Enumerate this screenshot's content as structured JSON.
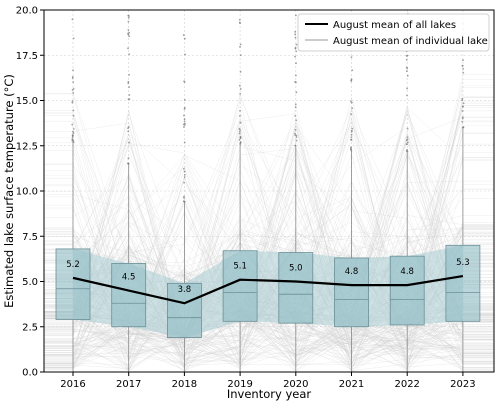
{
  "chart_data": {
    "type": "box",
    "xlabel": "Inventory year",
    "ylabel": "Estimated lake surface temperature (°C)",
    "ylim": [
      0,
      20
    ],
    "yticks": [
      0.0,
      2.5,
      5.0,
      7.5,
      10.0,
      12.5,
      15.0,
      17.5,
      20.0
    ],
    "ytick_labels": [
      "0.0",
      "2.5",
      "5.0",
      "7.5",
      "10.0",
      "12.5",
      "15.0",
      "17.5",
      "20.0"
    ],
    "categories": [
      "2016",
      "2017",
      "2018",
      "2019",
      "2020",
      "2021",
      "2022",
      "2023"
    ],
    "grid": true,
    "legend_position": "top-right",
    "legend": [
      {
        "label": "August mean of all lakes",
        "color": "#000000"
      },
      {
        "label": "August mean of individual lake",
        "color": "#bbbbbb"
      }
    ],
    "mean_line": [
      5.2,
      4.5,
      3.8,
      5.1,
      5.0,
      4.8,
      4.8,
      5.3
    ],
    "mean_labels": [
      "5.2",
      "4.5",
      "3.8",
      "5.1",
      "5.0",
      "4.8",
      "4.8",
      "5.3"
    ],
    "boxes": [
      {
        "q1": 2.9,
        "median": 4.6,
        "q3": 6.8,
        "whisker_low": 0.0,
        "whisker_high": 12.7
      },
      {
        "q1": 2.5,
        "median": 3.8,
        "q3": 6.0,
        "whisker_low": 0.0,
        "whisker_high": 11.5
      },
      {
        "q1": 1.9,
        "median": 3.0,
        "q3": 4.9,
        "whisker_low": 0.0,
        "whisker_high": 9.4
      },
      {
        "q1": 2.8,
        "median": 4.4,
        "q3": 6.7,
        "whisker_low": 0.0,
        "whisker_high": 12.6
      },
      {
        "q1": 2.7,
        "median": 4.3,
        "q3": 6.6,
        "whisker_low": 0.0,
        "whisker_high": 12.5
      },
      {
        "q1": 2.5,
        "median": 4.0,
        "q3": 6.3,
        "whisker_low": 0.0,
        "whisker_high": 12.2
      },
      {
        "q1": 2.6,
        "median": 4.0,
        "q3": 6.4,
        "whisker_low": 0.0,
        "whisker_high": 12.2
      },
      {
        "q1": 2.8,
        "median": 4.4,
        "q3": 7.0,
        "whisker_low": 0.0,
        "whisker_high": 13.5
      }
    ],
    "colors": {
      "box_fill": "#8fbcc4",
      "band_fill": "#a9cdd3",
      "mean_line": "#000000",
      "individual_lines": "#cccccc",
      "outliers": "#777777",
      "grid": "#cfcfcf"
    }
  }
}
